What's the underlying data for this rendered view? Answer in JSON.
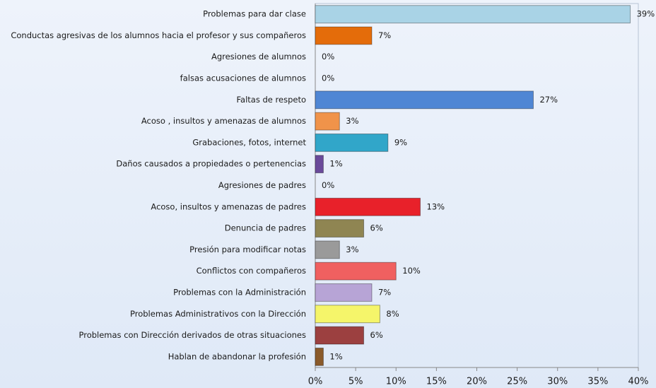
{
  "chart_data": {
    "type": "bar",
    "orientation": "horizontal",
    "categories": [
      "Problemas para dar clase",
      "Conductas agresivas de los alumnos hacia el profesor y sus compañeros",
      "Agresiones de alumnos",
      "falsas acusaciones de alumnos",
      "Faltas de respeto",
      "Acoso , insultos y amenazas de alumnos",
      "Grabaciones, fotos, internet",
      "Daños causados a propiedades o pertenencias",
      "Agresiones de padres",
      "Acoso, insultos y amenazas de padres",
      "Denuncia de padres",
      "Presión para modificar notas",
      "Conflictos con compañeros",
      "Problemas con la Administración",
      "Problemas Administrativos con la Dirección",
      "Problemas con Dirección derivados de otras situaciones",
      "Hablan de abandonar la profesión"
    ],
    "values": [
      39,
      7,
      0,
      0,
      27,
      3,
      9,
      1,
      0,
      13,
      6,
      3,
      10,
      7,
      8,
      6,
      1
    ],
    "value_labels": [
      "39%",
      "7%",
      "0%",
      "0%",
      "27%",
      "3%",
      "9%",
      "1%",
      "0%",
      "13%",
      "6%",
      "3%",
      "10%",
      "7%",
      "8%",
      "6%",
      "1%"
    ],
    "colors": [
      "#a9d3e6",
      "#e46c0a",
      "#cccccc",
      "#cccccc",
      "#4f86d4",
      "#f0934a",
      "#31a6c9",
      "#6a4a9a",
      "#cccccc",
      "#e8212a",
      "#8f8552",
      "#9a9a9a",
      "#f06060",
      "#b7a4d6",
      "#f5f56a",
      "#9c4040",
      "#8a5a2a"
    ],
    "xlim": [
      0,
      40
    ],
    "xticks": [
      {
        "value": 0,
        "label": "0%"
      },
      {
        "value": 5,
        "label": "5%"
      },
      {
        "value": 10,
        "label": "10%"
      },
      {
        "value": 15,
        "label": "15%"
      },
      {
        "value": 20,
        "label": "20%"
      },
      {
        "value": 25,
        "label": "25%"
      },
      {
        "value": 30,
        "label": "30%"
      },
      {
        "value": 35,
        "label": "35%"
      },
      {
        "value": 40,
        "label": "40%"
      }
    ]
  }
}
